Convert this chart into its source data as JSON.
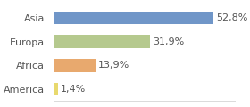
{
  "categories": [
    "Asia",
    "Europa",
    "Africa",
    "America"
  ],
  "values": [
    52.8,
    31.9,
    13.9,
    1.4
  ],
  "labels": [
    "52,8%",
    "31,9%",
    "13,9%",
    "1,4%"
  ],
  "bar_colors": [
    "#7096c8",
    "#b5c98e",
    "#e8a96e",
    "#e8d96e"
  ],
  "background_color": "#ffffff",
  "xlim": [
    0,
    60
  ],
  "bar_height": 0.55,
  "label_fontsize": 8,
  "tick_fontsize": 8
}
